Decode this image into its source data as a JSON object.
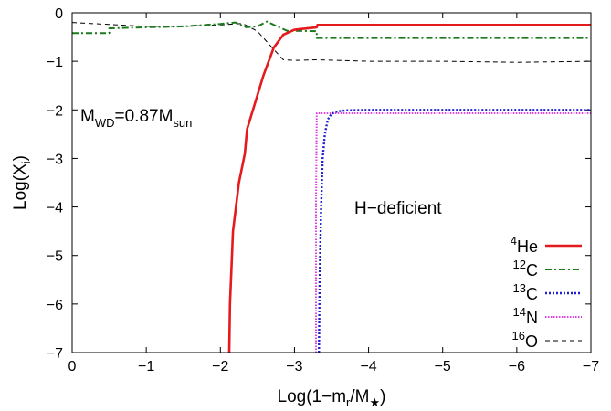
{
  "chart_data": {
    "type": "line",
    "xlabel": {
      "main": "Log(1−m",
      "sub": "r",
      "mid": "/M",
      "sub2": "★",
      "end": ")"
    },
    "ylabel": {
      "main": "Log(X",
      "sub": "i",
      "end": ")"
    },
    "xlim": [
      0,
      -7
    ],
    "ylim": [
      -7,
      0
    ],
    "x_ticks": [
      0,
      -1,
      -2,
      -3,
      -4,
      -5,
      -6,
      -7
    ],
    "x_tick_labels": [
      "0",
      "−1",
      "−2",
      "−3",
      "−4",
      "−5",
      "−6",
      "−7"
    ],
    "y_ticks": [
      0,
      -1,
      -2,
      -3,
      -4,
      -5,
      -6,
      -7
    ],
    "y_tick_labels": [
      "0",
      "−1",
      "−2",
      "−3",
      "−4",
      "−5",
      "−6",
      "−7"
    ],
    "grid": false,
    "legend_placement": "bottom-right",
    "annotations": [
      {
        "id": "mass",
        "parts": [
          {
            "t": "M",
            "sub": false
          },
          {
            "t": "WD",
            "sub": true
          },
          {
            "t": "=0.87M",
            "sub": false
          },
          {
            "t": "sun",
            "sub": true
          }
        ]
      },
      {
        "id": "hdef",
        "text": "H−deficient"
      }
    ],
    "series": [
      {
        "name": "He",
        "sup": "4",
        "color": "#e41a1c",
        "dash": "",
        "width": 2.6,
        "x": [
          -2.12,
          -2.13,
          -2.17,
          -2.25,
          -2.33,
          -2.36,
          -2.38,
          -2.46,
          -2.58,
          -2.72,
          -2.85,
          -3.0,
          -3.3,
          -3.31,
          -4.0,
          -5.0,
          -6.0,
          -7.0
        ],
        "y": [
          -7.0,
          -6.0,
          -4.5,
          -3.5,
          -2.9,
          -2.4,
          -2.3,
          -1.9,
          -1.3,
          -0.72,
          -0.45,
          -0.35,
          -0.3,
          -0.25,
          -0.25,
          -0.25,
          -0.25,
          -0.25
        ]
      },
      {
        "name": "C",
        "sup": "12",
        "color": "#1b7a1b",
        "dash": "7,3,2,3",
        "width": 2.0,
        "x": [
          0.0,
          -0.5,
          -0.5,
          -1.0,
          -1.5,
          -2.0,
          -2.2,
          -2.35,
          -2.5,
          -2.63,
          -2.75,
          -2.9,
          -3.0,
          -3.3,
          -3.3,
          -4.0,
          -5.0,
          -6.0,
          -7.0
        ],
        "y": [
          -0.42,
          -0.42,
          -0.32,
          -0.3,
          -0.28,
          -0.23,
          -0.2,
          -0.3,
          -0.28,
          -0.18,
          -0.27,
          -0.37,
          -0.37,
          -0.38,
          -0.52,
          -0.52,
          -0.52,
          -0.52,
          -0.52
        ]
      },
      {
        "name": "C",
        "sup": "13",
        "color": "#1f1fcf",
        "dash": "2,2",
        "width": 2.4,
        "x": [
          -3.33,
          -3.34,
          -3.36,
          -3.38,
          -3.41,
          -3.45,
          -3.5,
          -3.58,
          -3.7,
          -4.0,
          -5.0,
          -6.0,
          -7.0
        ],
        "y": [
          -7.0,
          -5.5,
          -4.0,
          -3.0,
          -2.5,
          -2.2,
          -2.08,
          -2.03,
          -2.01,
          -2.0,
          -2.0,
          -2.0,
          -2.0
        ]
      },
      {
        "name": "N",
        "sup": "14",
        "color": "#e040e0",
        "dash": "1.5,1.5",
        "width": 2.0,
        "x": [
          -3.29,
          -3.29,
          -3.3,
          -4.0,
          -5.0,
          -6.0,
          -7.0
        ],
        "y": [
          -7.0,
          -4.0,
          -2.07,
          -2.07,
          -2.07,
          -2.07,
          -2.07
        ]
      },
      {
        "name": "O",
        "sup": "16",
        "color": "#000000",
        "dash": "5,4",
        "width": 1.0,
        "x": [
          0.0,
          -0.5,
          -1.0,
          -1.5,
          -2.0,
          -2.3,
          -2.5,
          -2.7,
          -2.85,
          -3.0,
          -3.3,
          -4.0,
          -5.0,
          -6.0,
          -7.0
        ],
        "y": [
          -0.2,
          -0.24,
          -0.28,
          -0.28,
          -0.25,
          -0.22,
          -0.38,
          -0.72,
          -0.97,
          -0.98,
          -0.97,
          -1.0,
          -1.0,
          -1.02,
          -1.0
        ]
      }
    ]
  }
}
